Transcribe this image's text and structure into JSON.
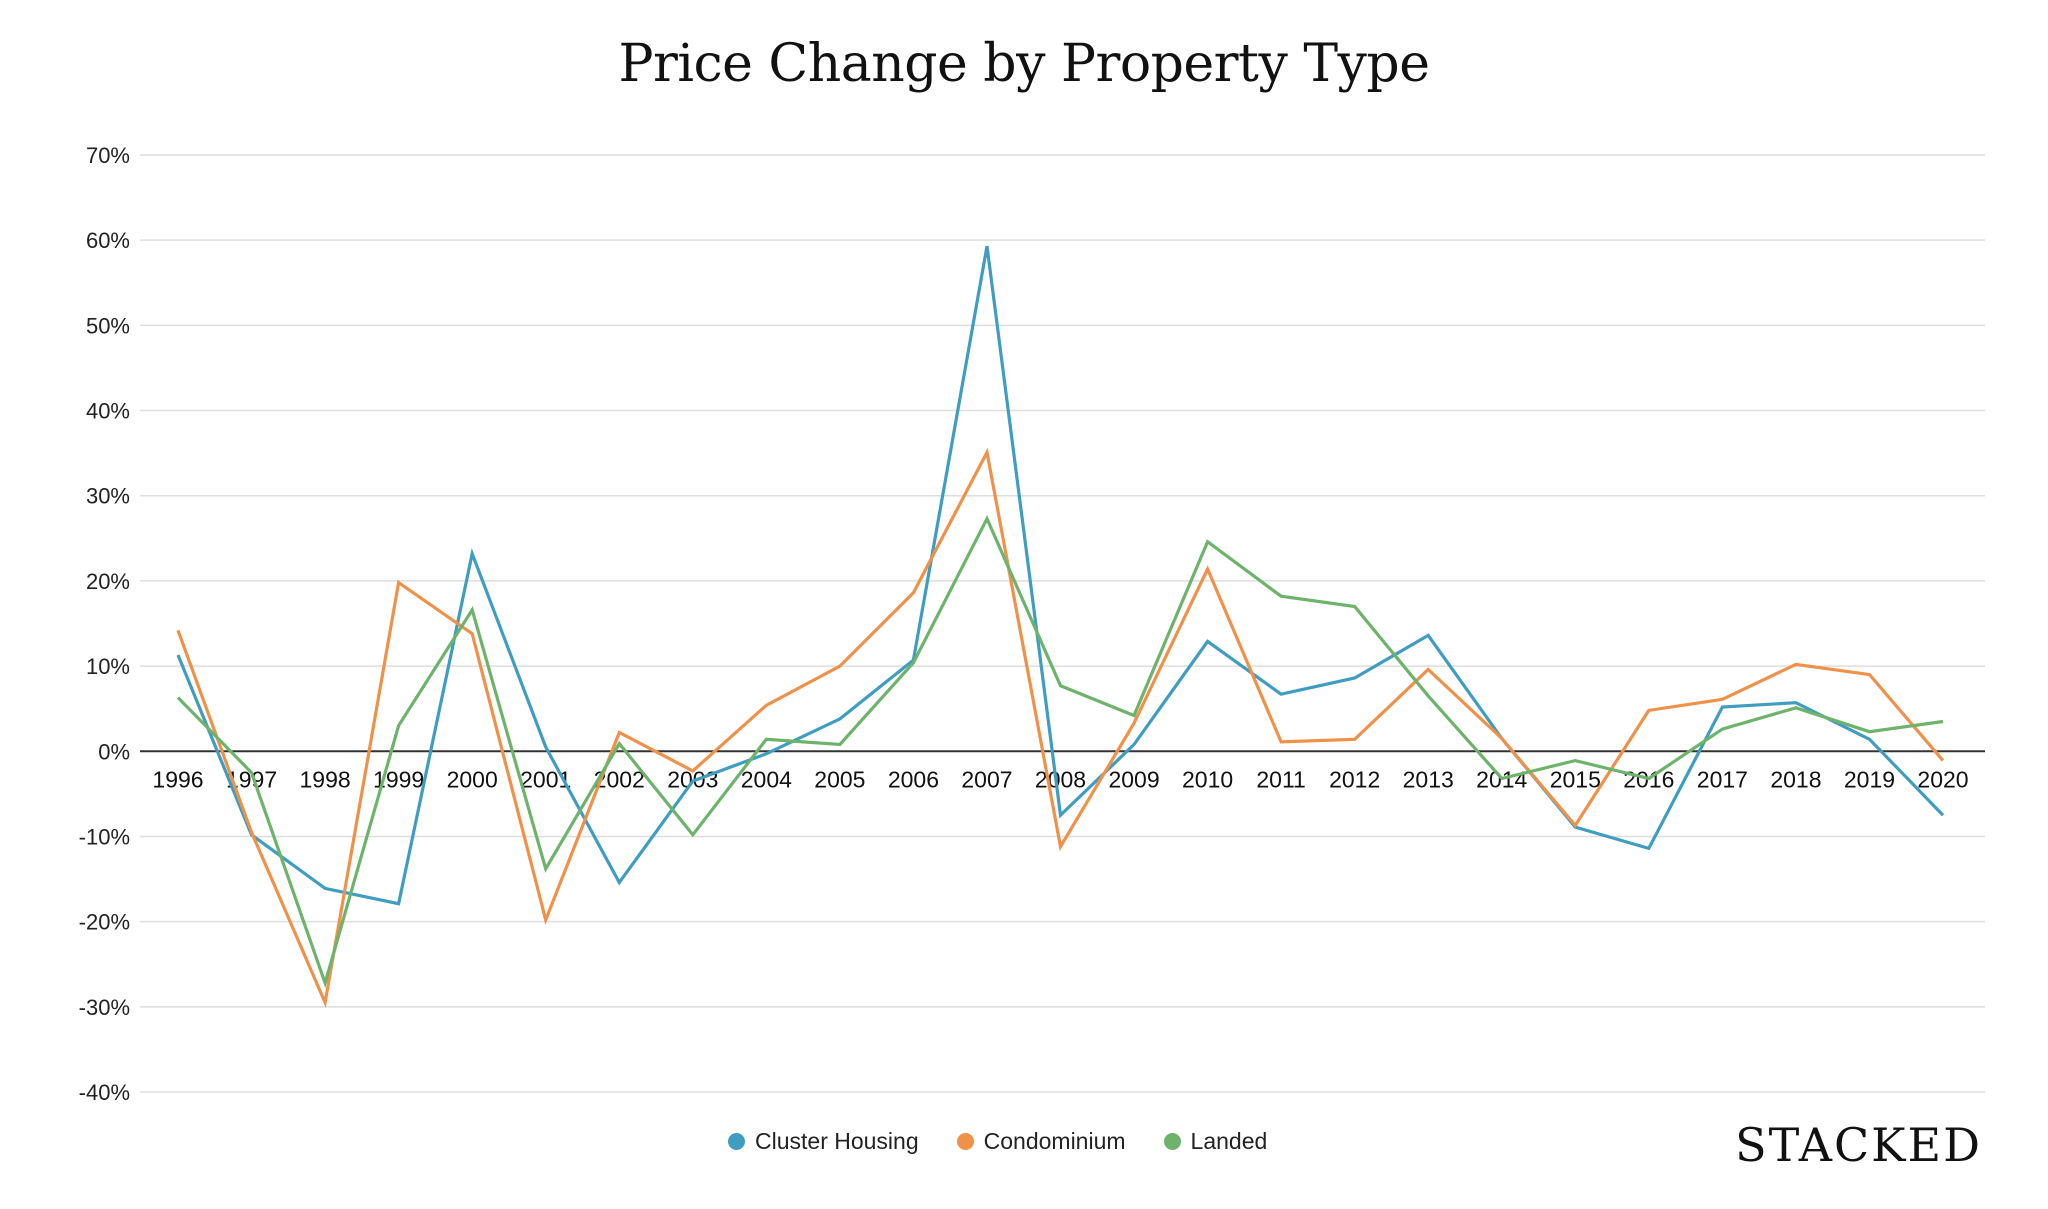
{
  "chart_data": {
    "type": "line",
    "title": "Price Change by Property Type",
    "xlabel": "",
    "ylabel": "",
    "ylim": [
      -40,
      70
    ],
    "yticks": [
      "70%",
      "60%",
      "50%",
      "40%",
      "30%",
      "20%",
      "10%",
      "0%",
      "-10%",
      "-20%",
      "-30%",
      "-40%"
    ],
    "ytick_values": [
      70,
      60,
      50,
      40,
      30,
      20,
      10,
      0,
      -10,
      -20,
      -30,
      -40
    ],
    "grid": true,
    "legend_position": "bottom-center",
    "x": [
      "1996",
      "1997",
      "1998",
      "1999",
      "2000",
      "2001",
      "2002",
      "2003",
      "2004",
      "2005",
      "2006",
      "2007",
      "2008",
      "2009",
      "2010",
      "2011",
      "2012",
      "2013",
      "2014",
      "2015",
      "2016",
      "2017",
      "2018",
      "2019",
      "2020"
    ],
    "series": [
      {
        "name": "Cluster Housing",
        "color": "#3f9dbf",
        "values": [
          11.3,
          -9.8,
          -16.1,
          -17.9,
          23.2,
          0.5,
          -15.4,
          -3.5,
          -0.3,
          3.8,
          10.7,
          59.3,
          -7.5,
          0.8,
          12.9,
          6.7,
          8.6,
          13.6,
          1.5,
          -8.9,
          -11.4,
          5.2,
          5.7,
          1.4,
          -7.5
        ]
      },
      {
        "name": "Condominium",
        "color": "#f0914a",
        "values": [
          14.2,
          -9.5,
          -29.5,
          19.8,
          13.8,
          -19.8,
          2.2,
          -2.3,
          5.4,
          10.0,
          18.6,
          35.1,
          -11.2,
          3.3,
          21.4,
          1.1,
          1.4,
          9.6,
          1.5,
          -8.7,
          4.8,
          6.1,
          10.2,
          9.0,
          -1.1
        ]
      },
      {
        "name": "Landed",
        "color": "#6db36b",
        "values": [
          6.3,
          -2.5,
          -27.2,
          3.0,
          16.6,
          -13.8,
          0.9,
          -9.8,
          1.4,
          0.8,
          10.4,
          27.3,
          7.7,
          4.2,
          24.6,
          18.2,
          17.0,
          6.5,
          -3.2,
          -1.1,
          -3.2,
          2.6,
          5.1,
          2.3,
          3.5
        ]
      }
    ]
  },
  "brand": {
    "logo_text": "STACKED"
  }
}
